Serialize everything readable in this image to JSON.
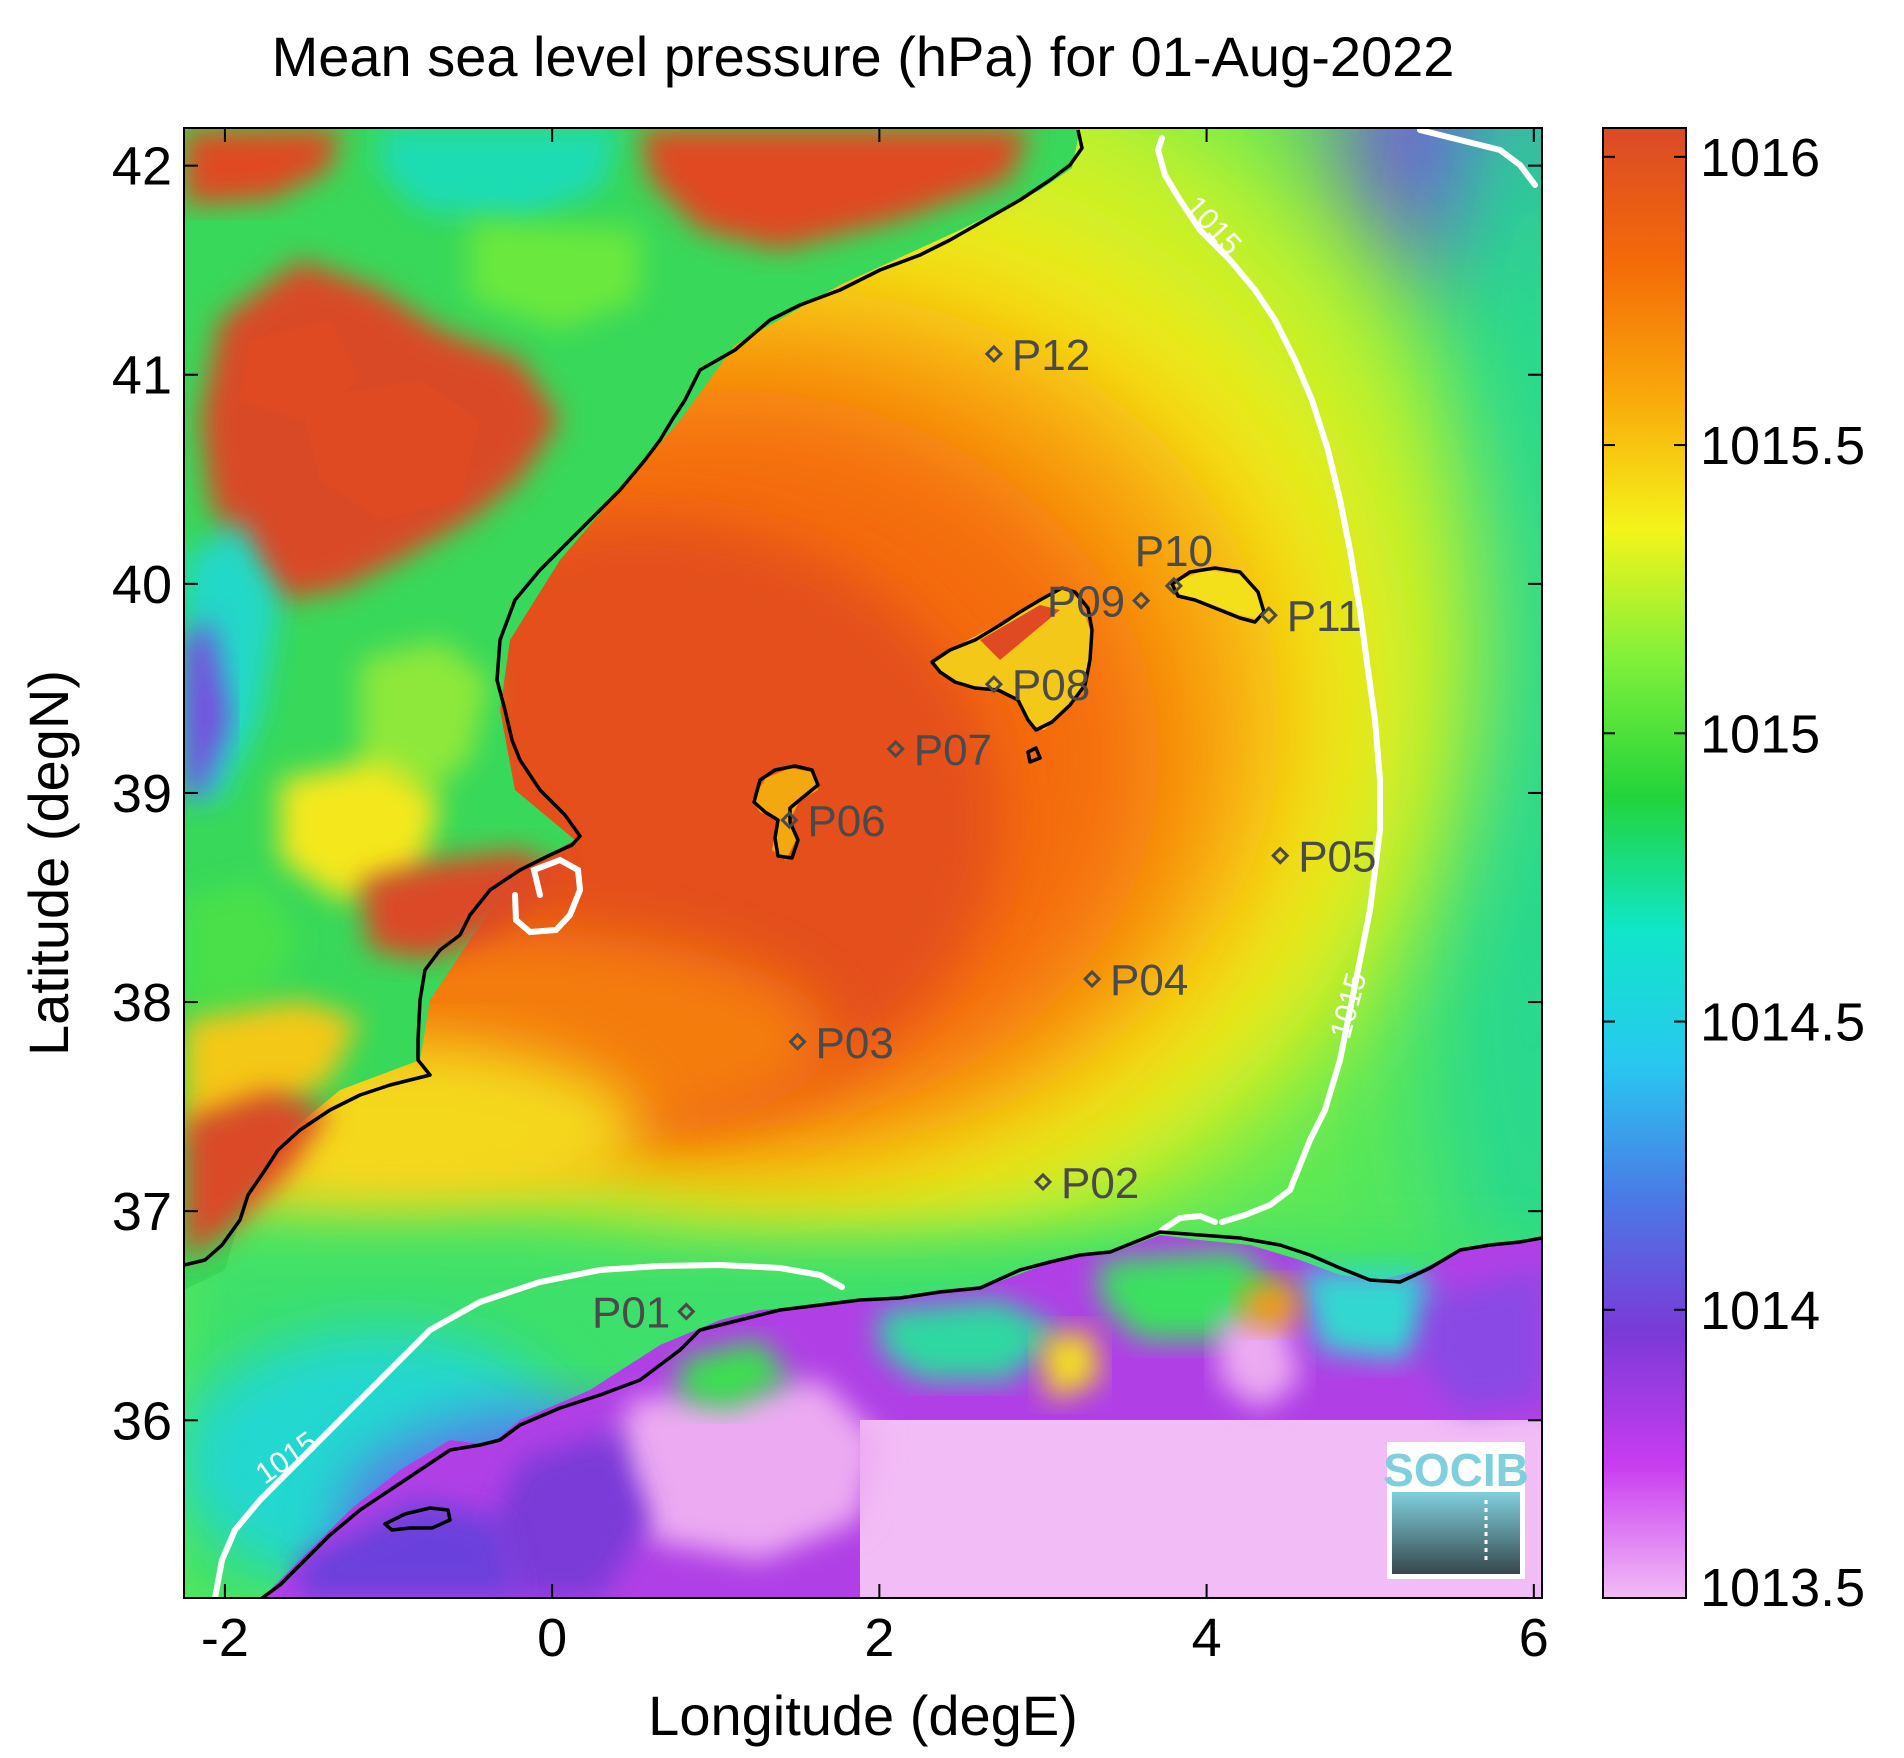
{
  "title": "Mean sea level pressure (hPa) for 01-Aug-2022",
  "map": {
    "xlabel": "Longitude (degE)",
    "ylabel": "Latitude (degN)",
    "xlim": [
      -2.25,
      6.05
    ],
    "ylim": [
      35.15,
      42.18
    ],
    "xticks": [
      {
        "value": -2,
        "label": "-2"
      },
      {
        "value": 0,
        "label": "0"
      },
      {
        "value": 2,
        "label": "2"
      },
      {
        "value": 4,
        "label": "4"
      },
      {
        "value": 6,
        "label": "6"
      }
    ],
    "yticks": [
      {
        "value": 36,
        "label": "36"
      },
      {
        "value": 37,
        "label": "37"
      },
      {
        "value": 38,
        "label": "38"
      },
      {
        "value": 39,
        "label": "39"
      },
      {
        "value": 40,
        "label": "40"
      },
      {
        "value": 41,
        "label": "41"
      },
      {
        "value": 42,
        "label": "42"
      }
    ],
    "contour_level": "1015",
    "contour_labels": [
      "1015",
      "1015",
      "1015"
    ],
    "stations": [
      {
        "label": "P01",
        "lon": 0.82,
        "lat": 36.52,
        "label_side": "left"
      },
      {
        "label": "P02",
        "lon": 3.0,
        "lat": 37.14,
        "label_side": "right"
      },
      {
        "label": "P03",
        "lon": 1.5,
        "lat": 37.81,
        "label_side": "right"
      },
      {
        "label": "P04",
        "lon": 3.3,
        "lat": 38.11,
        "label_side": "right"
      },
      {
        "label": "P05",
        "lon": 4.45,
        "lat": 38.7,
        "label_side": "right"
      },
      {
        "label": "P06",
        "lon": 1.45,
        "lat": 38.87,
        "label_side": "right"
      },
      {
        "label": "P07",
        "lon": 2.1,
        "lat": 39.21,
        "label_side": "right"
      },
      {
        "label": "P08",
        "lon": 2.7,
        "lat": 39.52,
        "label_side": "right"
      },
      {
        "label": "P09",
        "lon": 3.6,
        "lat": 39.92,
        "label_side": "left"
      },
      {
        "label": "P10",
        "lon": 3.8,
        "lat": 39.99,
        "label_side": "above"
      },
      {
        "label": "P11",
        "lon": 4.38,
        "lat": 39.85,
        "label_side": "right"
      },
      {
        "label": "P12",
        "lon": 2.7,
        "lat": 41.1,
        "label_side": "right"
      }
    ]
  },
  "colorbar": {
    "min": 1013.5,
    "max": 1016.05,
    "ticks": [
      {
        "value": 1016,
        "label": "1016"
      },
      {
        "value": 1015.5,
        "label": "1015.5"
      },
      {
        "value": 1015,
        "label": "1015"
      },
      {
        "value": 1014.5,
        "label": "1014.5"
      },
      {
        "value": 1014,
        "label": "1014"
      },
      {
        "value": 1013.5,
        "label": "1013.5"
      }
    ],
    "colormap": [
      "#f2bcf6",
      "#c83cf0",
      "#7a3ad8",
      "#4a7ae6",
      "#28c8f0",
      "#10e6c8",
      "#22d43a",
      "#7ef03a",
      "#f4f41a",
      "#f9a80a",
      "#f46a08",
      "#da4a28"
    ]
  },
  "colors": {
    "sea_high": "#e4501e",
    "land_high": "#d84a26",
    "contour": "#ffffff",
    "coastline": "#000000",
    "station": "#4a4a4a"
  },
  "logo": {
    "text": "SOCIB",
    "bg": "#ffffff",
    "accent": "#7fd0dc"
  }
}
